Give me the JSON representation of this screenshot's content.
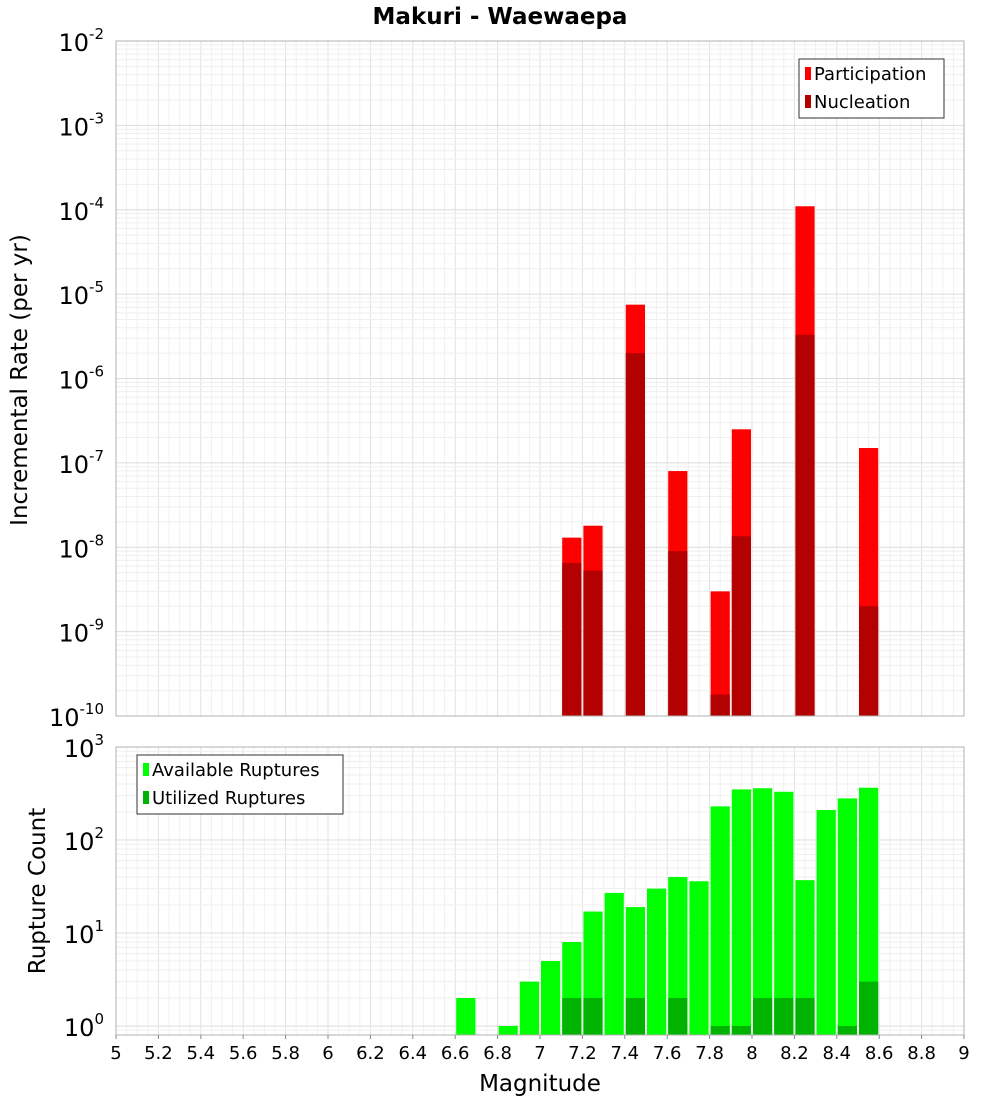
{
  "chart_data": {
    "title": "Makuri - Waewaepa",
    "xlabel": "Magnitude",
    "x_ticks": [
      "5",
      "5.2",
      "5.4",
      "5.6",
      "5.8",
      "6",
      "6.2",
      "6.4",
      "6.6",
      "6.8",
      "7",
      "7.2",
      "7.4",
      "7.6",
      "7.8",
      "8",
      "8.2",
      "8.4",
      "8.6",
      "8.8",
      "9"
    ],
    "xlim": [
      5,
      9
    ],
    "bar_width": 0.1,
    "panels": [
      {
        "type": "bar",
        "ylabel": "Incremental Rate (per yr)",
        "yscale": "log",
        "ylim": [
          1e-10,
          0.01
        ],
        "y_tick_exponents": [
          "-10",
          "-9",
          "-8",
          "-7",
          "-6",
          "-5",
          "-4",
          "-3",
          "-2"
        ],
        "legend_position": "top-right",
        "grid": true,
        "series": [
          {
            "name": "Participation",
            "color": "#ff0000",
            "x": [
              7.15,
              7.25,
              7.45,
              7.65,
              7.85,
              7.95,
              8.25,
              8.55
            ],
            "values": [
              1.3e-08,
              1.8e-08,
              7.5e-06,
              8e-08,
              3e-09,
              2.5e-07,
              0.00011,
              1.5e-07
            ]
          },
          {
            "name": "Nucleation",
            "color": "#b30000",
            "x": [
              7.15,
              7.25,
              7.45,
              7.65,
              7.85,
              7.95,
              8.25,
              8.55
            ],
            "values": [
              6.5e-09,
              5.3e-09,
              2e-06,
              9e-09,
              1.8e-10,
              1.35e-08,
              3.3e-06,
              2e-09
            ]
          }
        ]
      },
      {
        "type": "bar",
        "ylabel": "Rupture Count",
        "yscale": "log",
        "ylim": [
          0.8,
          1000
        ],
        "y_tick_exponents": [
          "0",
          "1",
          "2",
          "3"
        ],
        "legend_position": "top-left",
        "grid": true,
        "series": [
          {
            "name": "Available Ruptures",
            "color": "#00ff00",
            "x": [
              6.65,
              6.85,
              6.95,
              7.05,
              7.15,
              7.25,
              7.35,
              7.45,
              7.55,
              7.65,
              7.75,
              7.85,
              7.95,
              8.05,
              8.15,
              8.25,
              8.35,
              8.45,
              8.55
            ],
            "values": [
              2,
              1,
              3,
              5,
              8,
              17,
              27,
              19,
              30,
              40,
              36,
              230,
              350,
              360,
              330,
              37,
              210,
              280,
              365
            ]
          },
          {
            "name": "Utilized Ruptures",
            "color": "#00b300",
            "x": [
              7.15,
              7.25,
              7.45,
              7.65,
              7.85,
              7.95,
              8.05,
              8.15,
              8.25,
              8.45,
              8.55
            ],
            "values": [
              2,
              2,
              2,
              2,
              1,
              1,
              2,
              2,
              2,
              1,
              3
            ]
          }
        ]
      }
    ]
  }
}
